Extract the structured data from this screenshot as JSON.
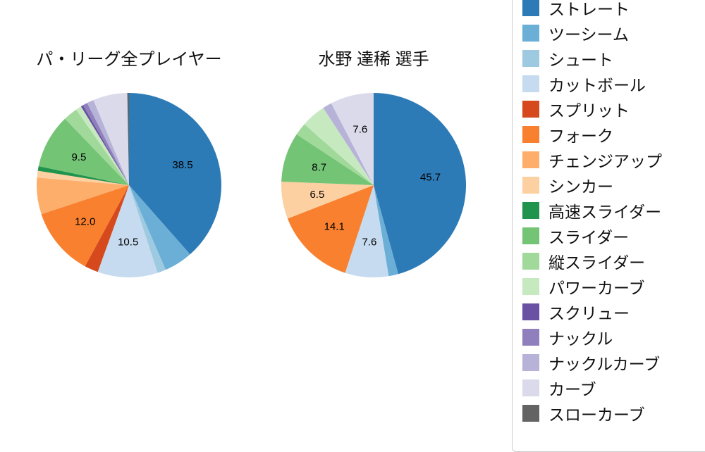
{
  "figure": {
    "background": "#ffffff"
  },
  "chart_data": [
    {
      "type": "pie",
      "title": "パ・リーグ全プレイヤー",
      "start": "top",
      "direction": "clockwise",
      "value_unit": "percent",
      "slices": [
        {
          "name": "ストレート",
          "value": 38.5,
          "pct_label": "38.5"
        },
        {
          "name": "ツーシーム",
          "value": 5.0,
          "pct_label": null
        },
        {
          "name": "シュート",
          "value": 1.5,
          "pct_label": null
        },
        {
          "name": "カットボール",
          "value": 10.5,
          "pct_label": "10.5"
        },
        {
          "name": "スプリット",
          "value": 2.4,
          "pct_label": null
        },
        {
          "name": "フォーク",
          "value": 12.0,
          "pct_label": "12.0"
        },
        {
          "name": "チェンジアップ",
          "value": 6.4,
          "pct_label": null
        },
        {
          "name": "シンカー",
          "value": 1.2,
          "pct_label": null
        },
        {
          "name": "高速スライダー",
          "value": 0.8,
          "pct_label": null
        },
        {
          "name": "スライダー",
          "value": 9.5,
          "pct_label": "9.5"
        },
        {
          "name": "縦スライダー",
          "value": 2.5,
          "pct_label": null
        },
        {
          "name": "パワーカーブ",
          "value": 1.0,
          "pct_label": null
        },
        {
          "name": "スクリュー",
          "value": 0.4,
          "pct_label": null
        },
        {
          "name": "ナックル",
          "value": 0.8,
          "pct_label": null
        },
        {
          "name": "ナックルカーブ",
          "value": 1.2,
          "pct_label": null
        },
        {
          "name": "カーブ",
          "value": 6.0,
          "pct_label": null
        },
        {
          "name": "スローカーブ",
          "value": 0.3,
          "pct_label": null
        }
      ]
    },
    {
      "type": "pie",
      "title": "水野 達稀 選手",
      "start": "top",
      "direction": "clockwise",
      "value_unit": "percent",
      "slices": [
        {
          "name": "ストレート",
          "value": 45.7,
          "pct_label": "45.7"
        },
        {
          "name": "ツーシーム",
          "value": 1.7,
          "pct_label": null
        },
        {
          "name": "シュート",
          "value": 0,
          "pct_label": null
        },
        {
          "name": "カットボール",
          "value": 7.6,
          "pct_label": "7.6"
        },
        {
          "name": "スプリット",
          "value": 0,
          "pct_label": null
        },
        {
          "name": "フォーク",
          "value": 14.1,
          "pct_label": "14.1"
        },
        {
          "name": "チェンジアップ",
          "value": 0,
          "pct_label": null
        },
        {
          "name": "シンカー",
          "value": 6.5,
          "pct_label": "6.5"
        },
        {
          "name": "高速スライダー",
          "value": 0,
          "pct_label": null
        },
        {
          "name": "スライダー",
          "value": 8.7,
          "pct_label": "8.7"
        },
        {
          "name": "縦スライダー",
          "value": 2.2,
          "pct_label": null
        },
        {
          "name": "パワーカーブ",
          "value": 4.3,
          "pct_label": null
        },
        {
          "name": "スクリュー",
          "value": 0,
          "pct_label": null
        },
        {
          "name": "ナックル",
          "value": 0,
          "pct_label": null
        },
        {
          "name": "ナックルカーブ",
          "value": 1.6,
          "pct_label": null
        },
        {
          "name": "カーブ",
          "value": 7.6,
          "pct_label": "7.6"
        },
        {
          "name": "スローカーブ",
          "value": 0,
          "pct_label": null
        }
      ]
    }
  ],
  "legend": {
    "items": [
      {
        "label": "ストレート",
        "color": "#2d7bb6"
      },
      {
        "label": "ツーシーム",
        "color": "#6baed6"
      },
      {
        "label": "シュート",
        "color": "#9ecae1"
      },
      {
        "label": "カットボール",
        "color": "#c6dbef"
      },
      {
        "label": "スプリット",
        "color": "#d5491d"
      },
      {
        "label": "フォーク",
        "color": "#f8802e"
      },
      {
        "label": "チェンジアップ",
        "color": "#fdae6b"
      },
      {
        "label": "シンカー",
        "color": "#fdd0a2"
      },
      {
        "label": "高速スライダー",
        "color": "#20934c"
      },
      {
        "label": "スライダー",
        "color": "#74c476"
      },
      {
        "label": "縦スライダー",
        "color": "#a1d99b"
      },
      {
        "label": "パワーカーブ",
        "color": "#c7e9c0"
      },
      {
        "label": "スクリュー",
        "color": "#6a51a3"
      },
      {
        "label": "ナックル",
        "color": "#8f80bd"
      },
      {
        "label": "ナックルカーブ",
        "color": "#b7b2d8"
      },
      {
        "label": "カーブ",
        "color": "#dadaeb"
      },
      {
        "label": "スローカーブ",
        "color": "#636363"
      }
    ]
  }
}
